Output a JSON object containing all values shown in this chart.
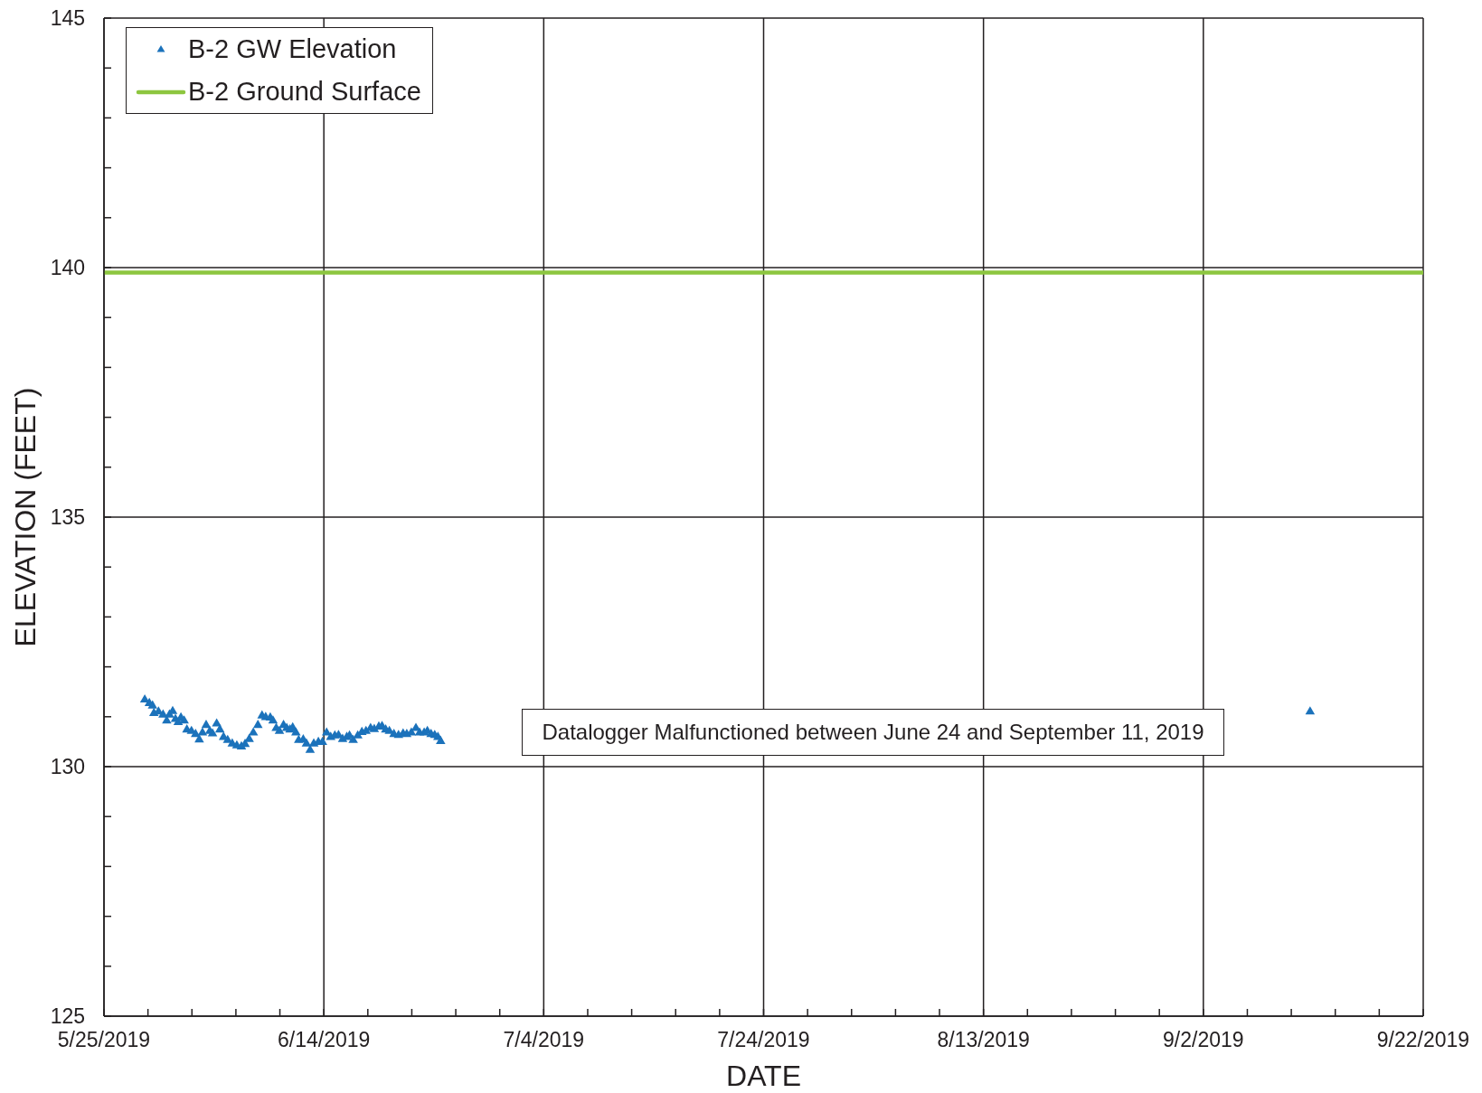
{
  "chart_data": {
    "type": "scatter",
    "xlabel": "DATE",
    "ylabel": "ELEVATION (FEET)",
    "legend": "top left",
    "grid": true,
    "annotations": [
      "Datalogger Malfunctioned between June 24 and September 11, 2019"
    ],
    "xlim": [
      "2019-05-25",
      "2019-09-22"
    ],
    "xticks": [
      {
        "value": "2019-05-25",
        "label": "5/25/2019"
      },
      {
        "value": "2019-05-29",
        "label": null
      },
      {
        "value": "2019-06-02",
        "label": null
      },
      {
        "value": "2019-06-06",
        "label": null
      },
      {
        "value": "2019-06-10",
        "label": null
      },
      {
        "value": "2019-06-14",
        "label": "6/14/2019"
      },
      {
        "value": "2019-06-18",
        "label": null
      },
      {
        "value": "2019-06-22",
        "label": null
      },
      {
        "value": "2019-06-26",
        "label": null
      },
      {
        "value": "2019-06-30",
        "label": null
      },
      {
        "value": "2019-07-04",
        "label": "7/4/2019"
      },
      {
        "value": "2019-07-08",
        "label": null
      },
      {
        "value": "2019-07-12",
        "label": null
      },
      {
        "value": "2019-07-16",
        "label": null
      },
      {
        "value": "2019-07-20",
        "label": null
      },
      {
        "value": "2019-07-24",
        "label": "7/24/2019"
      },
      {
        "value": "2019-07-28",
        "label": null
      },
      {
        "value": "2019-08-01",
        "label": null
      },
      {
        "value": "2019-08-05",
        "label": null
      },
      {
        "value": "2019-08-09",
        "label": null
      },
      {
        "value": "2019-08-13",
        "label": "8/13/2019"
      },
      {
        "value": "2019-08-17",
        "label": null
      },
      {
        "value": "2019-08-21",
        "label": null
      },
      {
        "value": "2019-08-25",
        "label": null
      },
      {
        "value": "2019-08-29",
        "label": null
      },
      {
        "value": "2019-09-02",
        "label": "9/2/2019"
      },
      {
        "value": "2019-09-06",
        "label": null
      },
      {
        "value": "2019-09-10",
        "label": null
      },
      {
        "value": "2019-09-14",
        "label": null
      },
      {
        "value": "2019-09-18",
        "label": null
      },
      {
        "value": "2019-09-22",
        "label": "9/22/2019"
      }
    ],
    "ylim": [
      125,
      145
    ],
    "yticks": [
      125,
      {
        "value": 126,
        "label": null
      },
      {
        "value": 127,
        "label": null
      },
      {
        "value": 128,
        "label": null
      },
      {
        "value": 129,
        "label": null
      },
      130,
      {
        "value": 131,
        "label": null
      },
      {
        "value": 132,
        "label": null
      },
      {
        "value": 133,
        "label": null
      },
      {
        "value": 134,
        "label": null
      },
      135,
      {
        "value": 136,
        "label": null
      },
      {
        "value": 137,
        "label": null
      },
      {
        "value": 138,
        "label": null
      },
      {
        "value": 139,
        "label": null
      },
      140,
      {
        "value": 141,
        "label": null
      },
      {
        "value": 142,
        "label": null
      },
      {
        "value": 143,
        "label": null
      },
      {
        "value": 144,
        "label": null
      },
      145
    ],
    "series": [
      {
        "name": "B-2 GW Elevation",
        "marker": "triangle",
        "color": "#1b72bb",
        "x": [
          "2019-05-28T17:00",
          "2019-05-29T03:00",
          "2019-05-29T10:00",
          "2019-05-29T13:00",
          "2019-05-29T23:00",
          "2019-05-30T09:00",
          "2019-05-30T17:00",
          "2019-05-30T23:00",
          "2019-05-31T06:00",
          "2019-05-31T12:00",
          "2019-05-31T18:00",
          "2019-06-01T00:00",
          "2019-06-01T07:00",
          "2019-06-01T13:00",
          "2019-06-01T23:00",
          "2019-06-02T08:00",
          "2019-06-02T16:00",
          "2019-06-02T23:00",
          "2019-06-03T07:00",
          "2019-06-03T15:00",
          "2019-06-03T21:00",
          "2019-06-04T06:00",
          "2019-06-04T13:00",
          "2019-06-04T21:00",
          "2019-06-05T06:00",
          "2019-06-05T16:00",
          "2019-06-06T02:00",
          "2019-06-06T12:00",
          "2019-06-06T20:00",
          "2019-06-07T05:00",
          "2019-06-07T14:00",
          "2019-06-08T00:00",
          "2019-06-08T09:00",
          "2019-06-08T17:00",
          "2019-06-09T03:00",
          "2019-06-09T09:00",
          "2019-06-09T16:00",
          "2019-06-09T23:00",
          "2019-06-10T08:00",
          "2019-06-10T15:00",
          "2019-06-10T22:00",
          "2019-06-11T04:00",
          "2019-06-11T11:00",
          "2019-06-11T17:00",
          "2019-06-12T03:00",
          "2019-06-12T10:00",
          "2019-06-12T18:00",
          "2019-06-13T02:00",
          "2019-06-13T12:00",
          "2019-06-13T21:00",
          "2019-06-14T06:00",
          "2019-06-14T15:00",
          "2019-06-15T00:00",
          "2019-06-15T08:00",
          "2019-06-15T17:00",
          "2019-06-16T02:00",
          "2019-06-16T08:00",
          "2019-06-16T16:00",
          "2019-06-17T02:00",
          "2019-06-17T11:00",
          "2019-06-17T20:00",
          "2019-06-18T06:00",
          "2019-06-18T14:00",
          "2019-06-19T00:00",
          "2019-06-19T07:00",
          "2019-06-19T15:00",
          "2019-06-19T23:00",
          "2019-06-20T09:00",
          "2019-06-20T19:00",
          "2019-06-21T05:00",
          "2019-06-21T13:00",
          "2019-06-21T23:00",
          "2019-06-22T09:00",
          "2019-06-22T17:00",
          "2019-06-23T03:00",
          "2019-06-23T10:00",
          "2019-06-23T18:00",
          "2019-06-24T02:00",
          "2019-06-24T09:00",
          "2019-06-24T15:00",
          "2019-09-11T17:00"
        ],
        "values": [
          131.34,
          131.27,
          131.22,
          131.07,
          131.1,
          131.04,
          130.92,
          131.04,
          131.11,
          130.95,
          130.89,
          130.98,
          130.92,
          130.74,
          130.71,
          130.65,
          130.54,
          130.68,
          130.83,
          130.71,
          130.66,
          130.86,
          130.74,
          130.59,
          130.53,
          130.46,
          130.42,
          130.4,
          130.45,
          130.55,
          130.68,
          130.83,
          131.02,
          130.99,
          130.98,
          130.92,
          130.77,
          130.71,
          130.83,
          130.77,
          130.74,
          130.78,
          130.68,
          130.53,
          130.54,
          130.46,
          130.33,
          130.46,
          130.49,
          130.49,
          130.68,
          130.59,
          130.62,
          130.63,
          130.55,
          130.59,
          130.62,
          130.53,
          130.62,
          130.69,
          130.71,
          130.77,
          130.75,
          130.8,
          130.81,
          130.74,
          130.71,
          130.65,
          130.63,
          130.66,
          130.65,
          130.68,
          130.77,
          130.68,
          130.68,
          130.71,
          130.65,
          130.63,
          130.59,
          130.51,
          131.1
        ]
      },
      {
        "name": "B-2 Ground Surface",
        "type": "line",
        "color": "#8dc63f",
        "x": [
          "2019-05-25",
          "2019-09-22"
        ],
        "values": [
          139.9,
          139.9
        ]
      }
    ]
  }
}
